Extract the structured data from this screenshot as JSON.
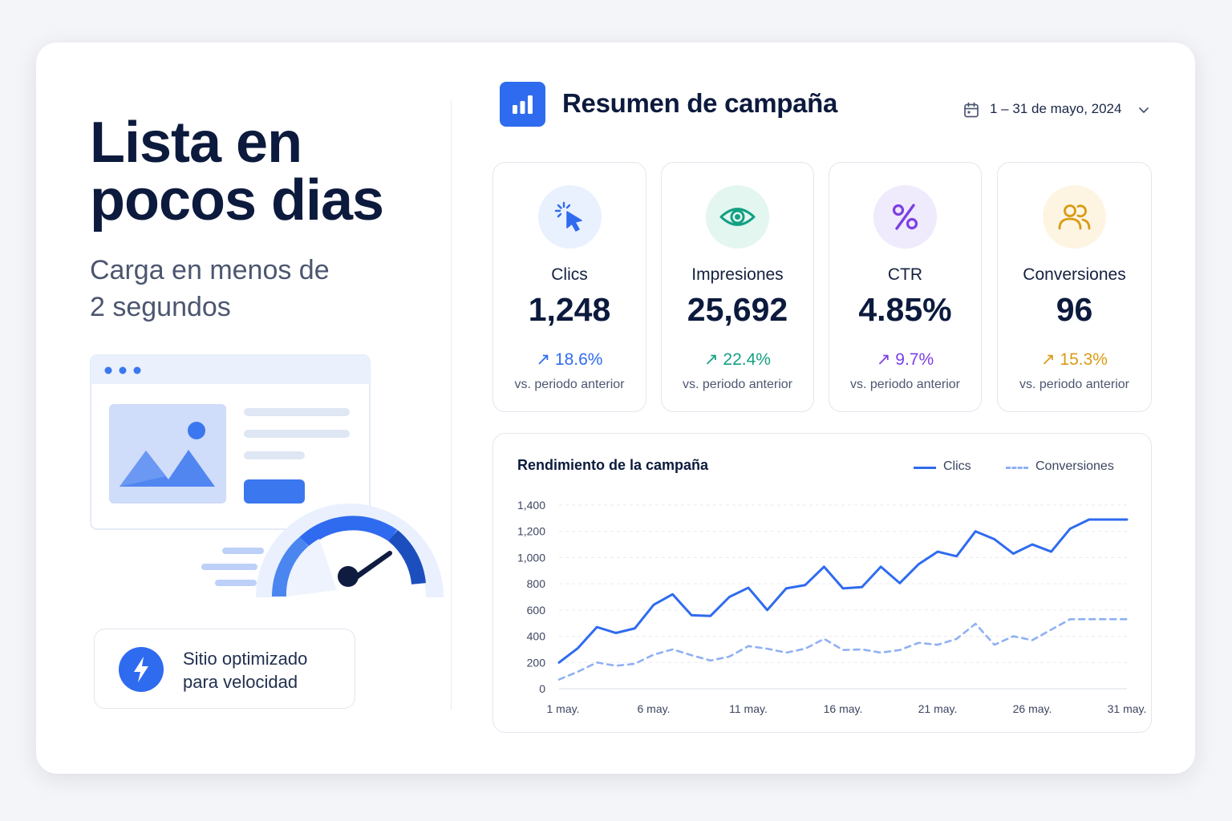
{
  "hero": {
    "title_line1": "Lista en",
    "title_line2": "pocos dias",
    "subtitle_line1": "Carga en menos de",
    "subtitle_line2": "2 segundos"
  },
  "badge": {
    "line1": "Sitio optimizado",
    "line2": "para velocidad",
    "icon": "lightning-icon"
  },
  "header": {
    "title": "Resumen de campaña",
    "date_range": "1 – 31 de mayo, 2024",
    "logo_icon": "bar-chart-icon",
    "calendar_icon": "calendar-icon",
    "dropdown_icon": "chevron-down-icon"
  },
  "stats": [
    {
      "label": "Clics",
      "value": "1,248",
      "change": "↗ 18.6%",
      "note": "vs. periodo anterior",
      "icon": "cursor-click-icon",
      "color": "#2f6bef",
      "bg": "#e9f0fe"
    },
    {
      "label": "Impresiones",
      "value": "25,692",
      "change": "↗ 22.4%",
      "note": "vs. periodo anterior",
      "icon": "eye-icon",
      "color": "#13a083",
      "bg": "#e3f6f0"
    },
    {
      "label": "CTR",
      "value": "4.85%",
      "change": "↗ 9.7%",
      "note": "vs. periodo anterior",
      "icon": "percent-icon",
      "color": "#7b3fe4",
      "bg": "#f0eafd"
    },
    {
      "label": "Conversiones",
      "value": "96",
      "change": "↗ 15.3%",
      "note": "vs. periodo anterior",
      "icon": "users-icon",
      "color": "#d99a14",
      "bg": "#fdf5e2"
    }
  ],
  "chart_data": {
    "type": "line",
    "title": "Rendimiento de la campaña",
    "x": [
      1,
      2,
      3,
      4,
      5,
      6,
      7,
      8,
      9,
      10,
      11,
      12,
      13,
      14,
      15,
      16,
      17,
      18,
      19,
      20,
      21,
      22,
      23,
      24,
      25,
      26,
      27,
      28,
      29,
      30,
      31
    ],
    "x_tick_labels": [
      "1 may.",
      "6 may.",
      "11 may.",
      "16 may.",
      "21 may.",
      "26 may.",
      "31 may."
    ],
    "x_tick_values": [
      1,
      6,
      11,
      16,
      21,
      26,
      31
    ],
    "y_ticks": [
      "0",
      "200",
      "400",
      "600",
      "800",
      "1,000",
      "1,200",
      "1,400"
    ],
    "ylim": [
      0,
      1400
    ],
    "grid": true,
    "legend_position": "top-right",
    "series": [
      {
        "name": "Clics",
        "style": "solid",
        "color": "#2f6bef",
        "values": [
          200,
          310,
          470,
          425,
          460,
          640,
          720,
          560,
          555,
          700,
          770,
          600,
          765,
          790,
          930,
          765,
          775,
          930,
          805,
          950,
          1045,
          1010,
          1200,
          1140,
          1030,
          1100,
          1045,
          1220,
          1290,
          1290,
          1290
        ]
      },
      {
        "name": "Conversiones",
        "style": "dashed",
        "color": "#8fb0f3",
        "values": [
          70,
          130,
          200,
          175,
          190,
          260,
          300,
          255,
          215,
          245,
          325,
          305,
          275,
          305,
          380,
          295,
          300,
          275,
          295,
          350,
          335,
          380,
          495,
          335,
          400,
          370,
          450,
          530,
          530,
          530,
          530
        ]
      }
    ]
  }
}
